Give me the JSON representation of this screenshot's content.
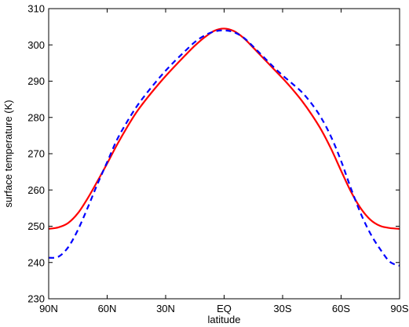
{
  "chart_data": {
    "type": "line",
    "title": "",
    "xlabel": "latitude",
    "ylabel": "surface temperature (K)",
    "xlim": [
      -90,
      90
    ],
    "ylim": [
      230,
      310
    ],
    "x_ticks": [
      -90,
      -60,
      -30,
      0,
      30,
      60,
      90
    ],
    "x_tick_labels": [
      "90N",
      "60N",
      "30N",
      "EQ",
      "30S",
      "60S",
      "90S"
    ],
    "y_ticks": [
      230,
      240,
      250,
      260,
      270,
      280,
      290,
      300,
      310
    ],
    "y_tick_labels": [
      "230",
      "240",
      "250",
      "260",
      "270",
      "280",
      "290",
      "300",
      "310"
    ],
    "grid": false,
    "legend": "none",
    "series": [
      {
        "color": "#ff0000",
        "style": "solid",
        "x": [
          -90,
          -85,
          -80,
          -75,
          -70,
          -65,
          -60,
          -55,
          -50,
          -45,
          -40,
          -35,
          -30,
          -25,
          -20,
          -15,
          -10,
          -5,
          0,
          5,
          10,
          15,
          20,
          25,
          30,
          35,
          40,
          45,
          50,
          55,
          60,
          65,
          70,
          75,
          80,
          85,
          90
        ],
        "y": [
          249.3,
          249.7,
          250.9,
          253.6,
          257.7,
          262.4,
          267.3,
          272.4,
          277.1,
          281.4,
          285.0,
          288.3,
          291.4,
          294.3,
          297.1,
          299.8,
          302.1,
          303.9,
          304.5,
          303.8,
          301.9,
          299.2,
          296.4,
          293.6,
          290.8,
          287.8,
          284.5,
          280.7,
          276.4,
          271.2,
          265.3,
          259.6,
          255.0,
          251.8,
          250.1,
          249.5,
          249.3
        ]
      },
      {
        "color": "#0000ff",
        "style": "dashed",
        "x": [
          -90,
          -85,
          -80,
          -75,
          -70,
          -65,
          -60,
          -55,
          -50,
          -45,
          -40,
          -35,
          -30,
          -25,
          -20,
          -15,
          -10,
          -5,
          0,
          5,
          10,
          15,
          20,
          25,
          30,
          35,
          40,
          45,
          50,
          55,
          60,
          65,
          70,
          75,
          80,
          85,
          90
        ],
        "y": [
          241.3,
          241.6,
          244.2,
          249.0,
          255.1,
          261.6,
          267.7,
          273.8,
          278.6,
          282.9,
          286.5,
          289.8,
          292.9,
          295.7,
          298.3,
          300.8,
          302.6,
          303.7,
          304.0,
          303.5,
          302.0,
          299.5,
          296.8,
          294.1,
          291.6,
          289.3,
          286.9,
          283.7,
          279.7,
          274.5,
          268.0,
          260.5,
          253.6,
          248.0,
          243.7,
          240.2,
          239.1
        ]
      }
    ]
  }
}
